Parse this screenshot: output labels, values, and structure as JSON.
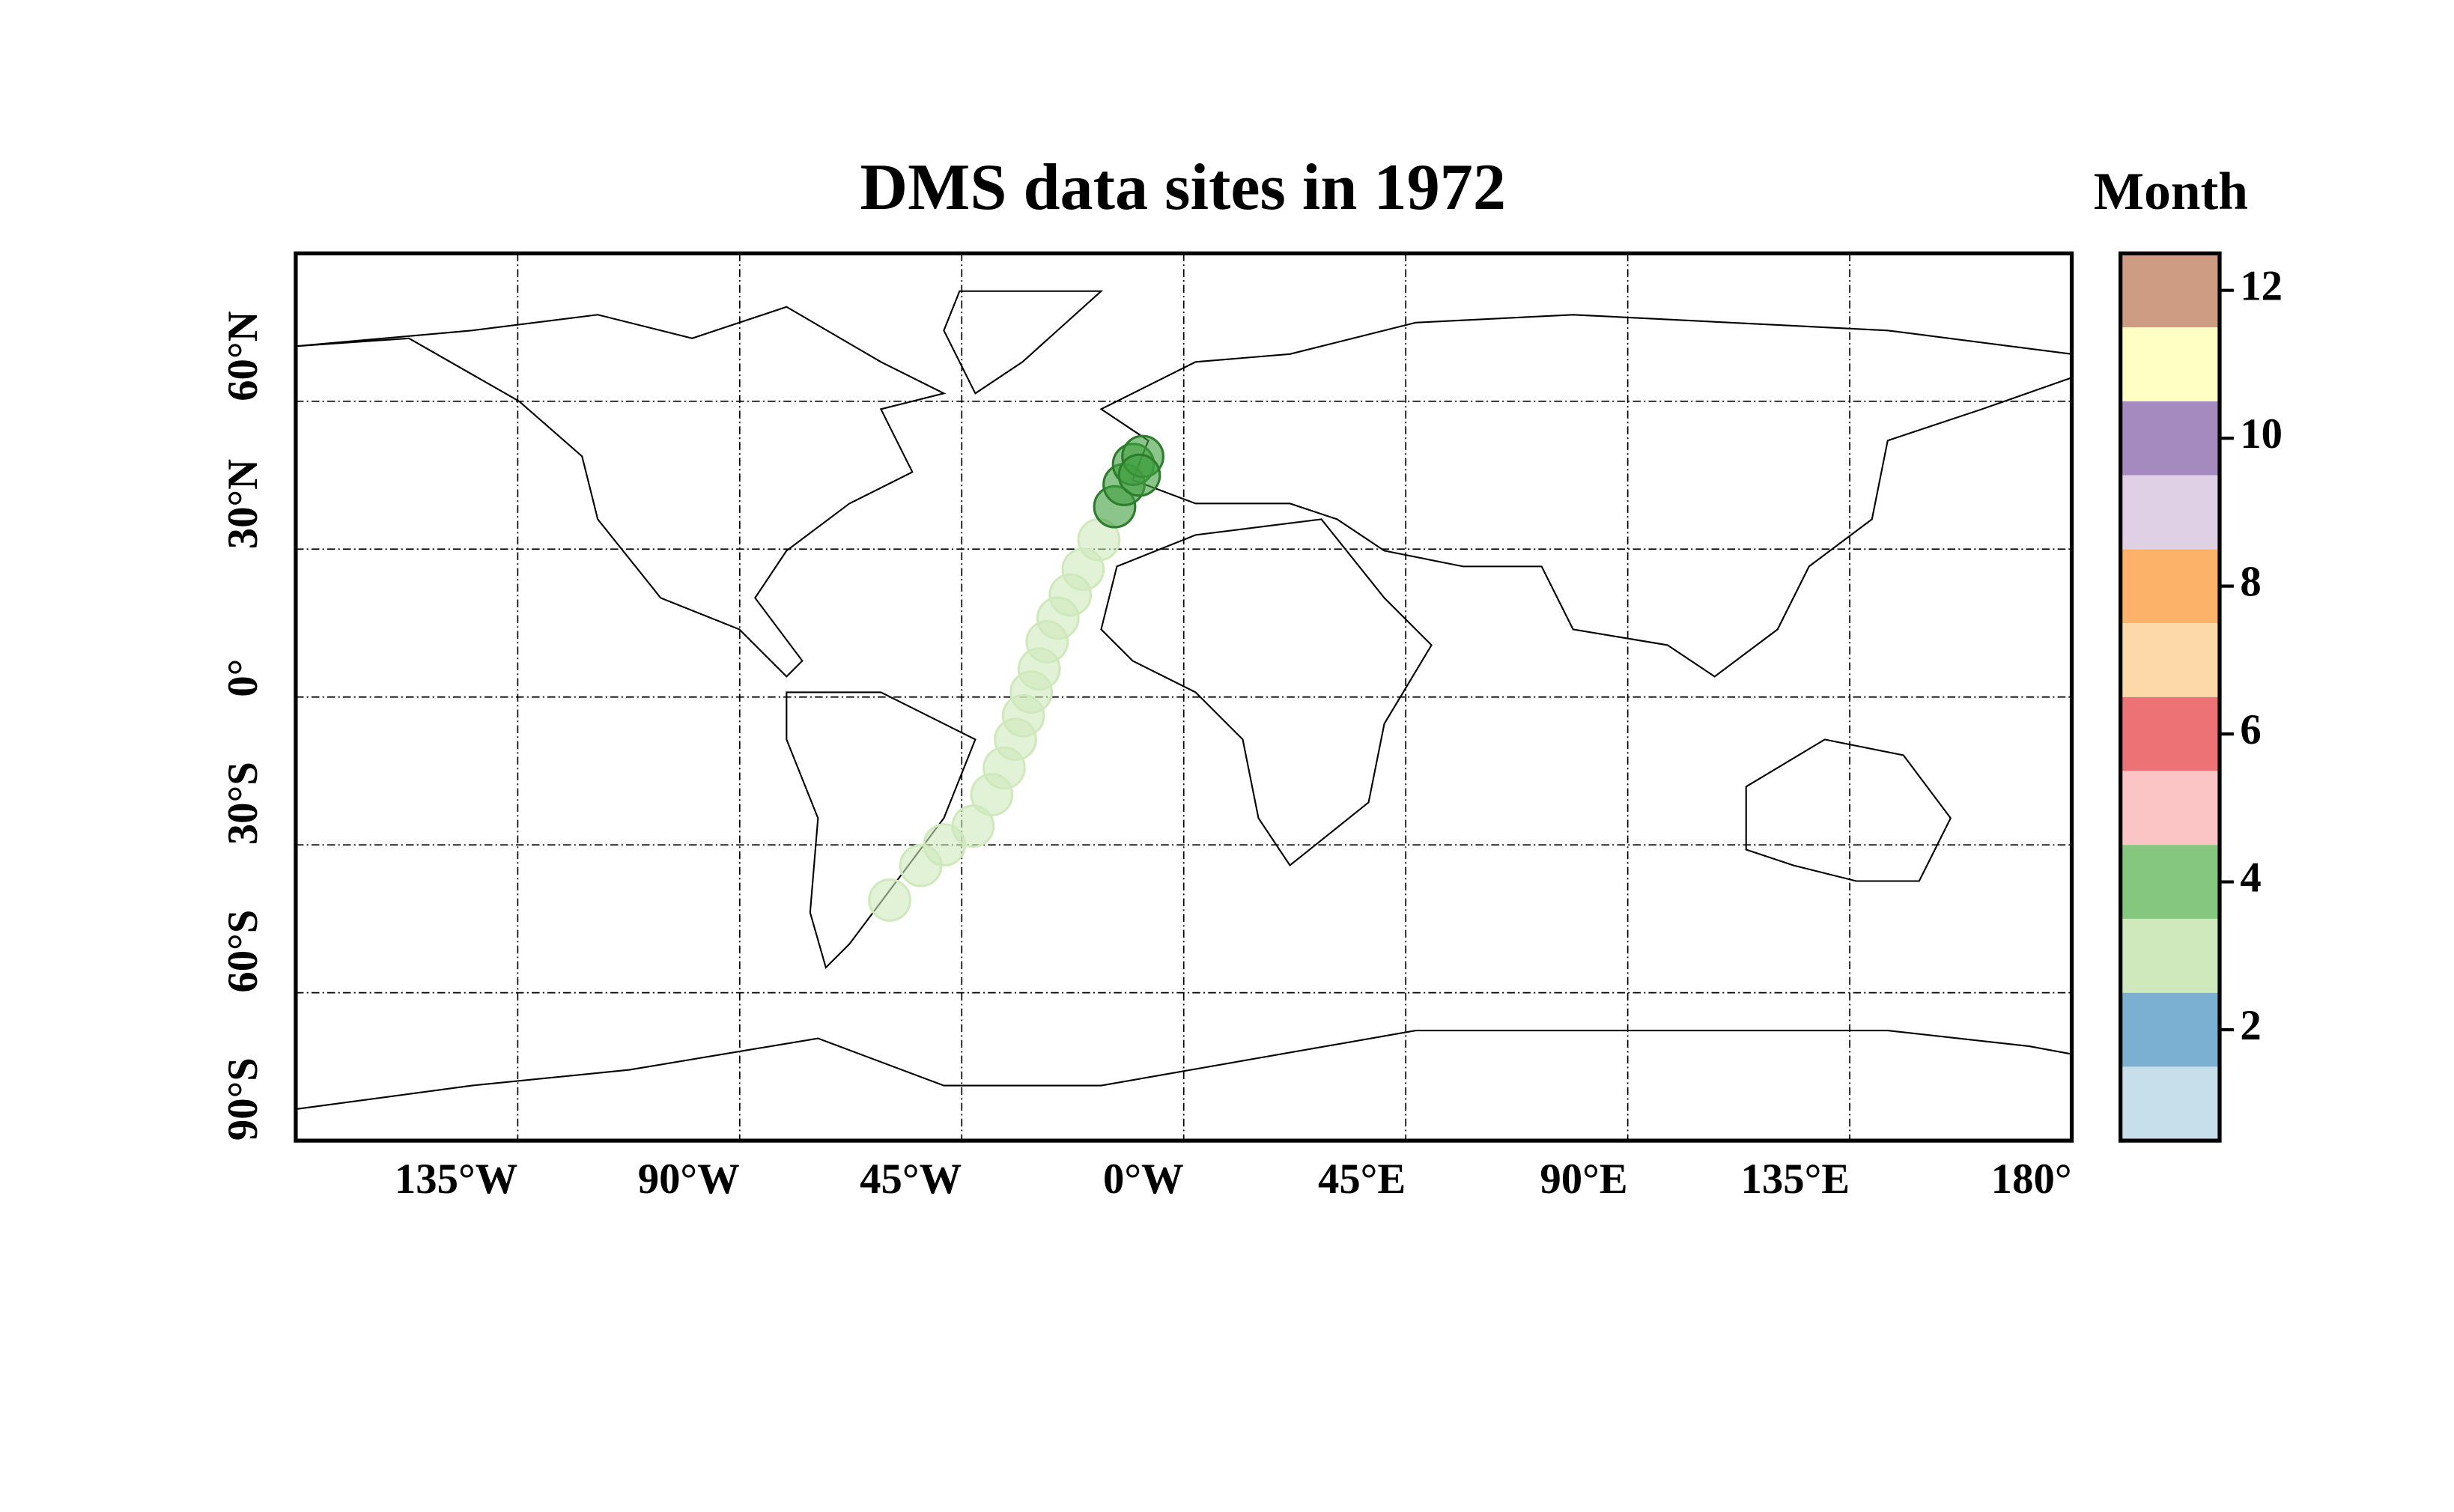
{
  "chart_data": {
    "type": "scatter",
    "title": "DMS data sites in 1972",
    "x": [
      -59.6,
      -53.3,
      -48.5,
      -42.7,
      -38.9,
      -36.4,
      -34.1,
      -32.5,
      -30.9,
      -29.3,
      -27.7,
      -25.5,
      -23.0,
      -20.4,
      -17.2,
      -14.0,
      -12.1,
      -10.2,
      -8.3,
      -9.0
    ],
    "values": [
      -41.2,
      -34.2,
      -30.0,
      -26.2,
      -19.8,
      -14.4,
      -8.6,
      -3.8,
      1.0,
      5.7,
      11.2,
      16.0,
      20.7,
      25.9,
      31.9,
      38.6,
      43.1,
      47.2,
      48.8,
      45.0
    ],
    "color_values": [
      3,
      3,
      3,
      3,
      3,
      3,
      3,
      3,
      3,
      3,
      3,
      3,
      3,
      3,
      3,
      4,
      4,
      4,
      4,
      4
    ],
    "xlim": [
      -180,
      180
    ],
    "xticks": [
      {
        "value": -135,
        "label": "135°W"
      },
      {
        "value": -90,
        "label": "90°W"
      },
      {
        "value": -45,
        "label": "45°W"
      },
      {
        "value": 0,
        "label": "0°W"
      },
      {
        "value": 45,
        "label": "45°E"
      },
      {
        "value": 90,
        "label": "90°E"
      },
      {
        "value": 135,
        "label": "135°E"
      },
      {
        "value": 180,
        "label": "180°"
      }
    ],
    "ylim": [
      -90,
      90
    ],
    "yticks": [
      {
        "value": -90,
        "label": "90°S"
      },
      {
        "value": -60,
        "label": "60°S"
      },
      {
        "value": -30,
        "label": "30°S"
      },
      {
        "value": 0,
        "label": "0°"
      },
      {
        "value": 30,
        "label": "30°N"
      },
      {
        "value": 60,
        "label": "60°N"
      }
    ],
    "grid": true,
    "colorbar": {
      "title": "Month",
      "range": [
        0.5,
        12.5
      ],
      "ticks": [
        2,
        4,
        6,
        8,
        10,
        12
      ],
      "colors": [
        "#c7dfeb",
        "#7bb0d2",
        "#cfe9bd",
        "#85c77f",
        "#fbc5c5",
        "#ec7276",
        "#fdd9a9",
        "#fdb26a",
        "#dfd0e6",
        "#a58ac0",
        "#ffffc4",
        "#cd9c83"
      ]
    }
  }
}
